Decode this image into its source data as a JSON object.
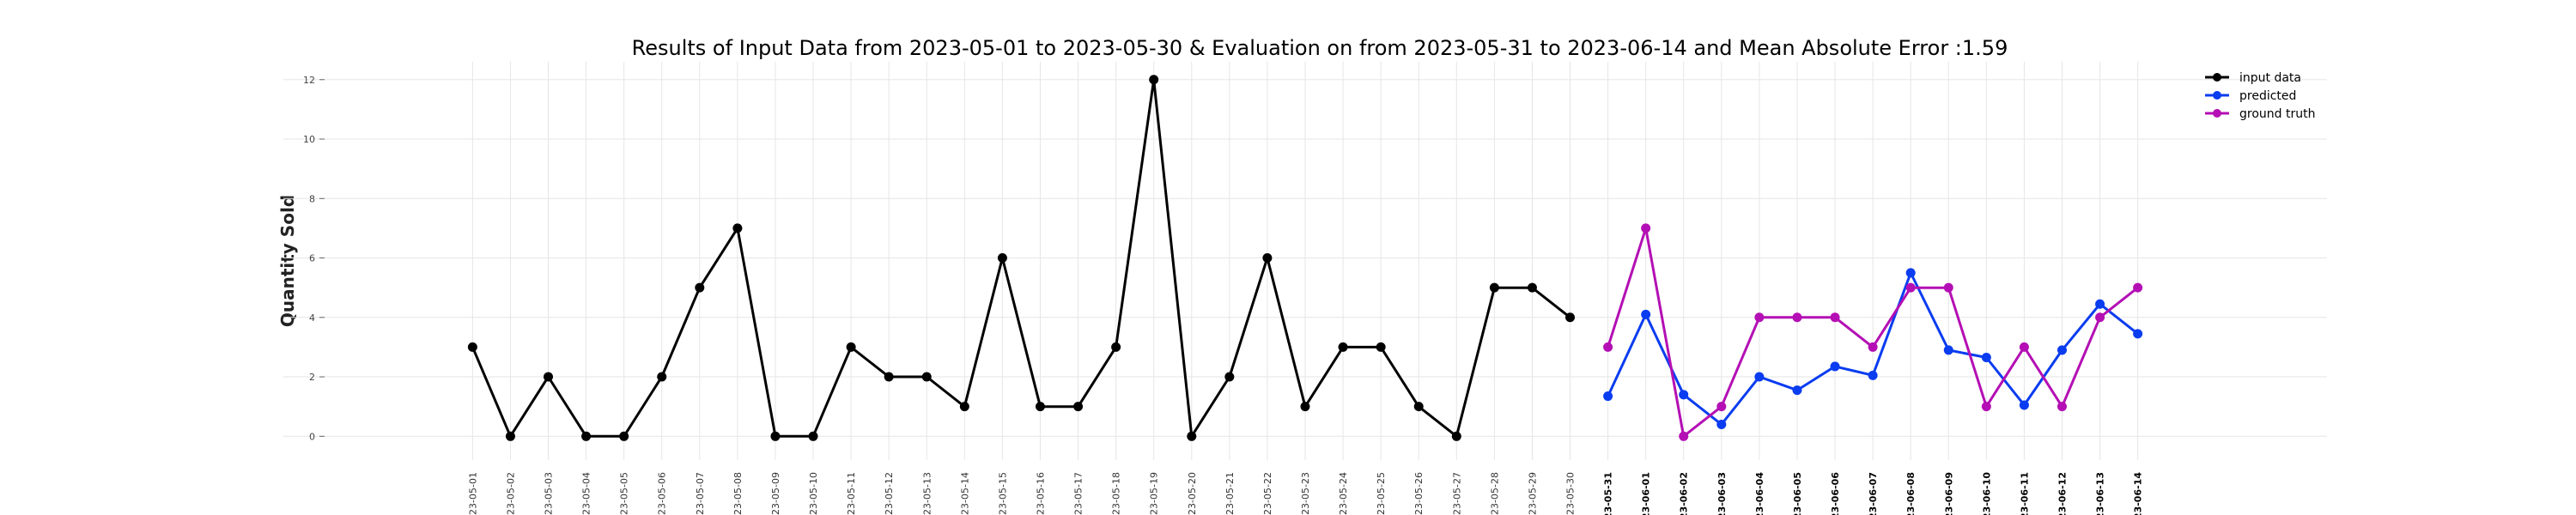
{
  "chart_data": {
    "type": "line",
    "title": "Results of Input Data from 2023-05-01 to 2023-05-30 & Evaluation on from 2023-05-31 to 2023-06-14 and Mean Absolute Error  :1.59",
    "xlabel": "",
    "ylabel": "Quantity Sold",
    "ylim": [
      -0.8,
      12.6
    ],
    "yticks": [
      0,
      2,
      4,
      6,
      8,
      10,
      12
    ],
    "xlim": [
      "2023-04-26",
      "2023-06-19"
    ],
    "x_tick_labels": [
      "-23-05-01",
      "-23-05-02",
      "-23-05-03",
      "-23-05-04",
      "-23-05-05",
      "-23-05-06",
      "-23-05-07",
      "-23-05-08",
      "-23-05-09",
      "-23-05-10",
      "-23-05-11",
      "-23-05-12",
      "-23-05-13",
      "-23-05-14",
      "-23-05-15",
      "-23-05-16",
      "-23-05-17",
      "-23-05-18",
      "-23-05-19",
      "-23-05-20",
      "-23-05-21",
      "-23-05-22",
      "-23-05-23",
      "-23-05-24",
      "-23-05-25",
      "-23-05-26",
      "-23-05-27",
      "-23-05-28",
      "-23-05-29",
      "-23-05-30",
      "-23-05-31",
      "-23-06-01",
      "-23-06-02",
      "-23-06-03",
      "-23-06-04",
      "-23-06-05",
      "-23-06-06",
      "-23-06-07",
      "-23-06-08",
      "-23-06-09",
      "-23-06-10",
      "-23-06-11",
      "-23-06-12",
      "-23-06-13",
      "-23-06-14"
    ],
    "x_tick_dates": [
      "2023-05-01",
      "2023-05-02",
      "2023-05-03",
      "2023-05-04",
      "2023-05-05",
      "2023-05-06",
      "2023-05-07",
      "2023-05-08",
      "2023-05-09",
      "2023-05-10",
      "2023-05-11",
      "2023-05-12",
      "2023-05-13",
      "2023-05-14",
      "2023-05-15",
      "2023-05-16",
      "2023-05-17",
      "2023-05-18",
      "2023-05-19",
      "2023-05-20",
      "2023-05-21",
      "2023-05-22",
      "2023-05-23",
      "2023-05-24",
      "2023-05-25",
      "2023-05-26",
      "2023-05-27",
      "2023-05-28",
      "2023-05-29",
      "2023-05-30",
      "2023-05-31",
      "2023-06-01",
      "2023-06-02",
      "2023-06-03",
      "2023-06-04",
      "2023-06-05",
      "2023-06-06",
      "2023-06-07",
      "2023-06-08",
      "2023-06-09",
      "2023-06-10",
      "2023-06-11",
      "2023-06-12",
      "2023-06-13",
      "2023-06-14"
    ],
    "grid": true,
    "legend_position": "top-right",
    "series": [
      {
        "name": "input data",
        "color": "#000000",
        "x": [
          "2023-05-01",
          "2023-05-02",
          "2023-05-03",
          "2023-05-04",
          "2023-05-05",
          "2023-05-06",
          "2023-05-07",
          "2023-05-08",
          "2023-05-09",
          "2023-05-10",
          "2023-05-11",
          "2023-05-12",
          "2023-05-13",
          "2023-05-14",
          "2023-05-15",
          "2023-05-16",
          "2023-05-17",
          "2023-05-18",
          "2023-05-19",
          "2023-05-20",
          "2023-05-21",
          "2023-05-22",
          "2023-05-23",
          "2023-05-24",
          "2023-05-25",
          "2023-05-26",
          "2023-05-27",
          "2023-05-28",
          "2023-05-29",
          "2023-05-30"
        ],
        "values": [
          3,
          0,
          2,
          0,
          0,
          2,
          5,
          7,
          0,
          0,
          3,
          2,
          2,
          1,
          6,
          1,
          1,
          3,
          12,
          0,
          2,
          6,
          1,
          3,
          3,
          1,
          0,
          5,
          5,
          4
        ]
      },
      {
        "name": "predicted",
        "color": "#0a3cf0",
        "x": [
          "2023-05-31",
          "2023-06-01",
          "2023-06-02",
          "2023-06-03",
          "2023-06-04",
          "2023-06-05",
          "2023-06-06",
          "2023-06-07",
          "2023-06-08",
          "2023-06-09",
          "2023-06-10",
          "2023-06-11",
          "2023-06-12",
          "2023-06-13",
          "2023-06-14"
        ],
        "values": [
          1.35,
          4.1,
          1.4,
          0.4,
          2.0,
          1.55,
          2.35,
          2.05,
          5.5,
          2.9,
          2.65,
          1.05,
          2.9,
          4.45,
          3.45
        ]
      },
      {
        "name": "ground truth",
        "color": "#b40fb4",
        "x": [
          "2023-05-31",
          "2023-06-01",
          "2023-06-02",
          "2023-06-03",
          "2023-06-04",
          "2023-06-05",
          "2023-06-06",
          "2023-06-07",
          "2023-06-08",
          "2023-06-09",
          "2023-06-10",
          "2023-06-11",
          "2023-06-12",
          "2023-06-13",
          "2023-06-14"
        ],
        "values": [
          3,
          7,
          0,
          1,
          4,
          4,
          4,
          3,
          5,
          5,
          1,
          3,
          1,
          4,
          5
        ]
      }
    ]
  }
}
